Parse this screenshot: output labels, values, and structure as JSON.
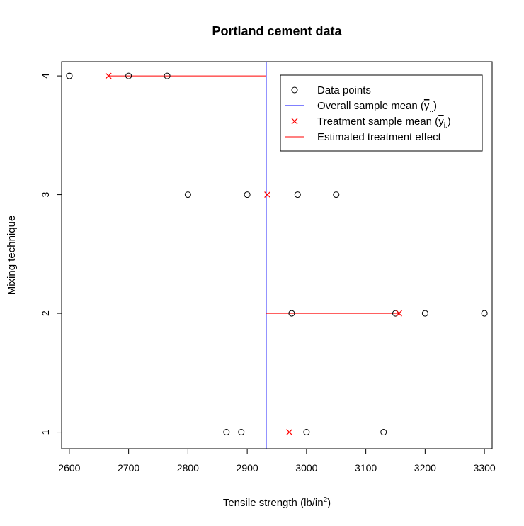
{
  "chart_data": {
    "type": "scatter",
    "title": "Portland cement data",
    "xlabel": "Tensile strength (lb/in",
    "xlabel_superscript": "2",
    "xlabel_suffix": ")",
    "ylabel": "Mixing technique",
    "xlim": [
      2587,
      3313
    ],
    "ylim": [
      0.86,
      4.12
    ],
    "xticks": [
      2600,
      2700,
      2800,
      2900,
      3000,
      3100,
      3200,
      3300
    ],
    "yticks": [
      1,
      2,
      3,
      4
    ],
    "overall_mean": 2932,
    "groups": [
      {
        "technique": 1,
        "points": [
          2865,
          2890,
          3000,
          3130
        ],
        "treatment_mean": 2971
      },
      {
        "technique": 2,
        "points": [
          2975,
          3150,
          3200,
          3300
        ],
        "treatment_mean": 3156
      },
      {
        "technique": 3,
        "points": [
          2800,
          2900,
          2985,
          3050
        ],
        "treatment_mean": 2934
      },
      {
        "technique": 4,
        "points": [
          2600,
          2600,
          2700,
          2765
        ],
        "treatment_mean": 2666
      }
    ],
    "colors": {
      "points": "#000000",
      "overall_mean": "#0000ff",
      "treatment_mean": "#ff0000",
      "effect": "#ff0000"
    },
    "legend": {
      "position": "top-right",
      "entries": [
        {
          "key": "points",
          "symbol": "circle",
          "label": "Data points"
        },
        {
          "key": "overall",
          "symbol": "line-blue",
          "label": "Overall sample mean (",
          "math": "y",
          "sub": "..",
          "close": ")"
        },
        {
          "key": "treatment",
          "symbol": "cross-red",
          "label": "Treatment sample mean (",
          "math": "y",
          "sub": "i.",
          "close": ")"
        },
        {
          "key": "effect",
          "symbol": "line-red",
          "label": "Estimated treatment effect"
        }
      ]
    }
  }
}
